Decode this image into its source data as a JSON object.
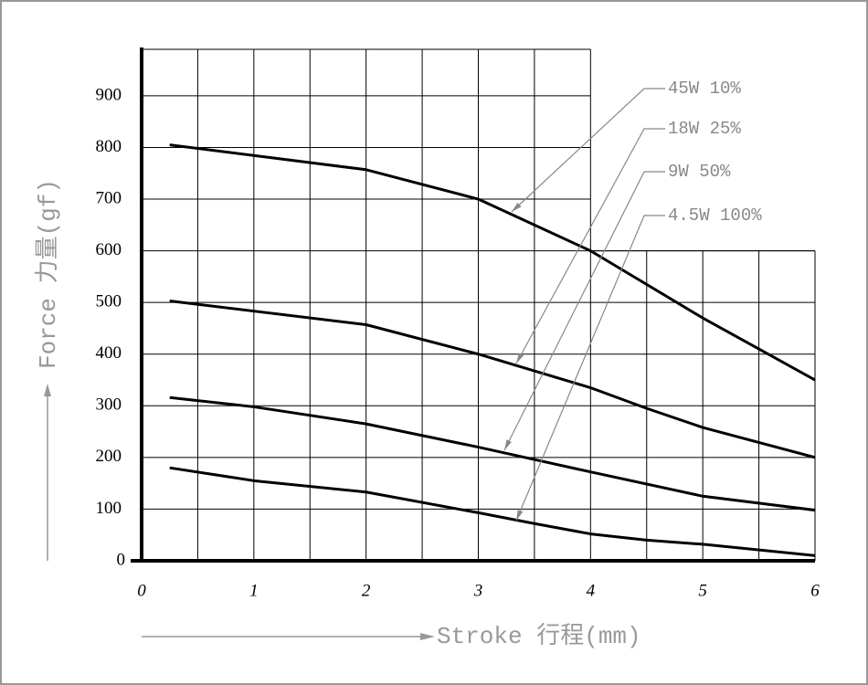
{
  "chart_data": {
    "type": "line",
    "y_label": "Force 力量(gf)",
    "x_label": "Stroke 行程(mm)",
    "x": [
      0.25,
      1,
      2,
      3,
      3.5,
      4,
      4.5,
      5,
      6
    ],
    "series": [
      {
        "name": "45W 10%",
        "color": "#000000",
        "values": [
          805,
          null,
          757,
          700,
          null,
          600,
          null,
          470,
          350
        ]
      },
      {
        "name": "18W 25%",
        "color": "#000000",
        "values": [
          503,
          null,
          457,
          400,
          null,
          335,
          295,
          258,
          200
        ]
      },
      {
        "name": "9W 50%",
        "color": "#000000",
        "values": [
          316,
          298,
          265,
          220,
          null,
          172,
          null,
          125,
          98
        ]
      },
      {
        "name": "4.5W 100%",
        "color": "#000000",
        "values": [
          180,
          155,
          133,
          93,
          72,
          52,
          40,
          32,
          10
        ]
      }
    ],
    "xlim": [
      0,
      6
    ],
    "xticks": [
      0,
      1,
      2,
      3,
      4,
      5,
      6
    ],
    "ylim": [
      0,
      990
    ],
    "yticks": [
      0,
      100,
      200,
      300,
      400,
      500,
      600,
      700,
      800,
      900
    ],
    "grid": true
  }
}
